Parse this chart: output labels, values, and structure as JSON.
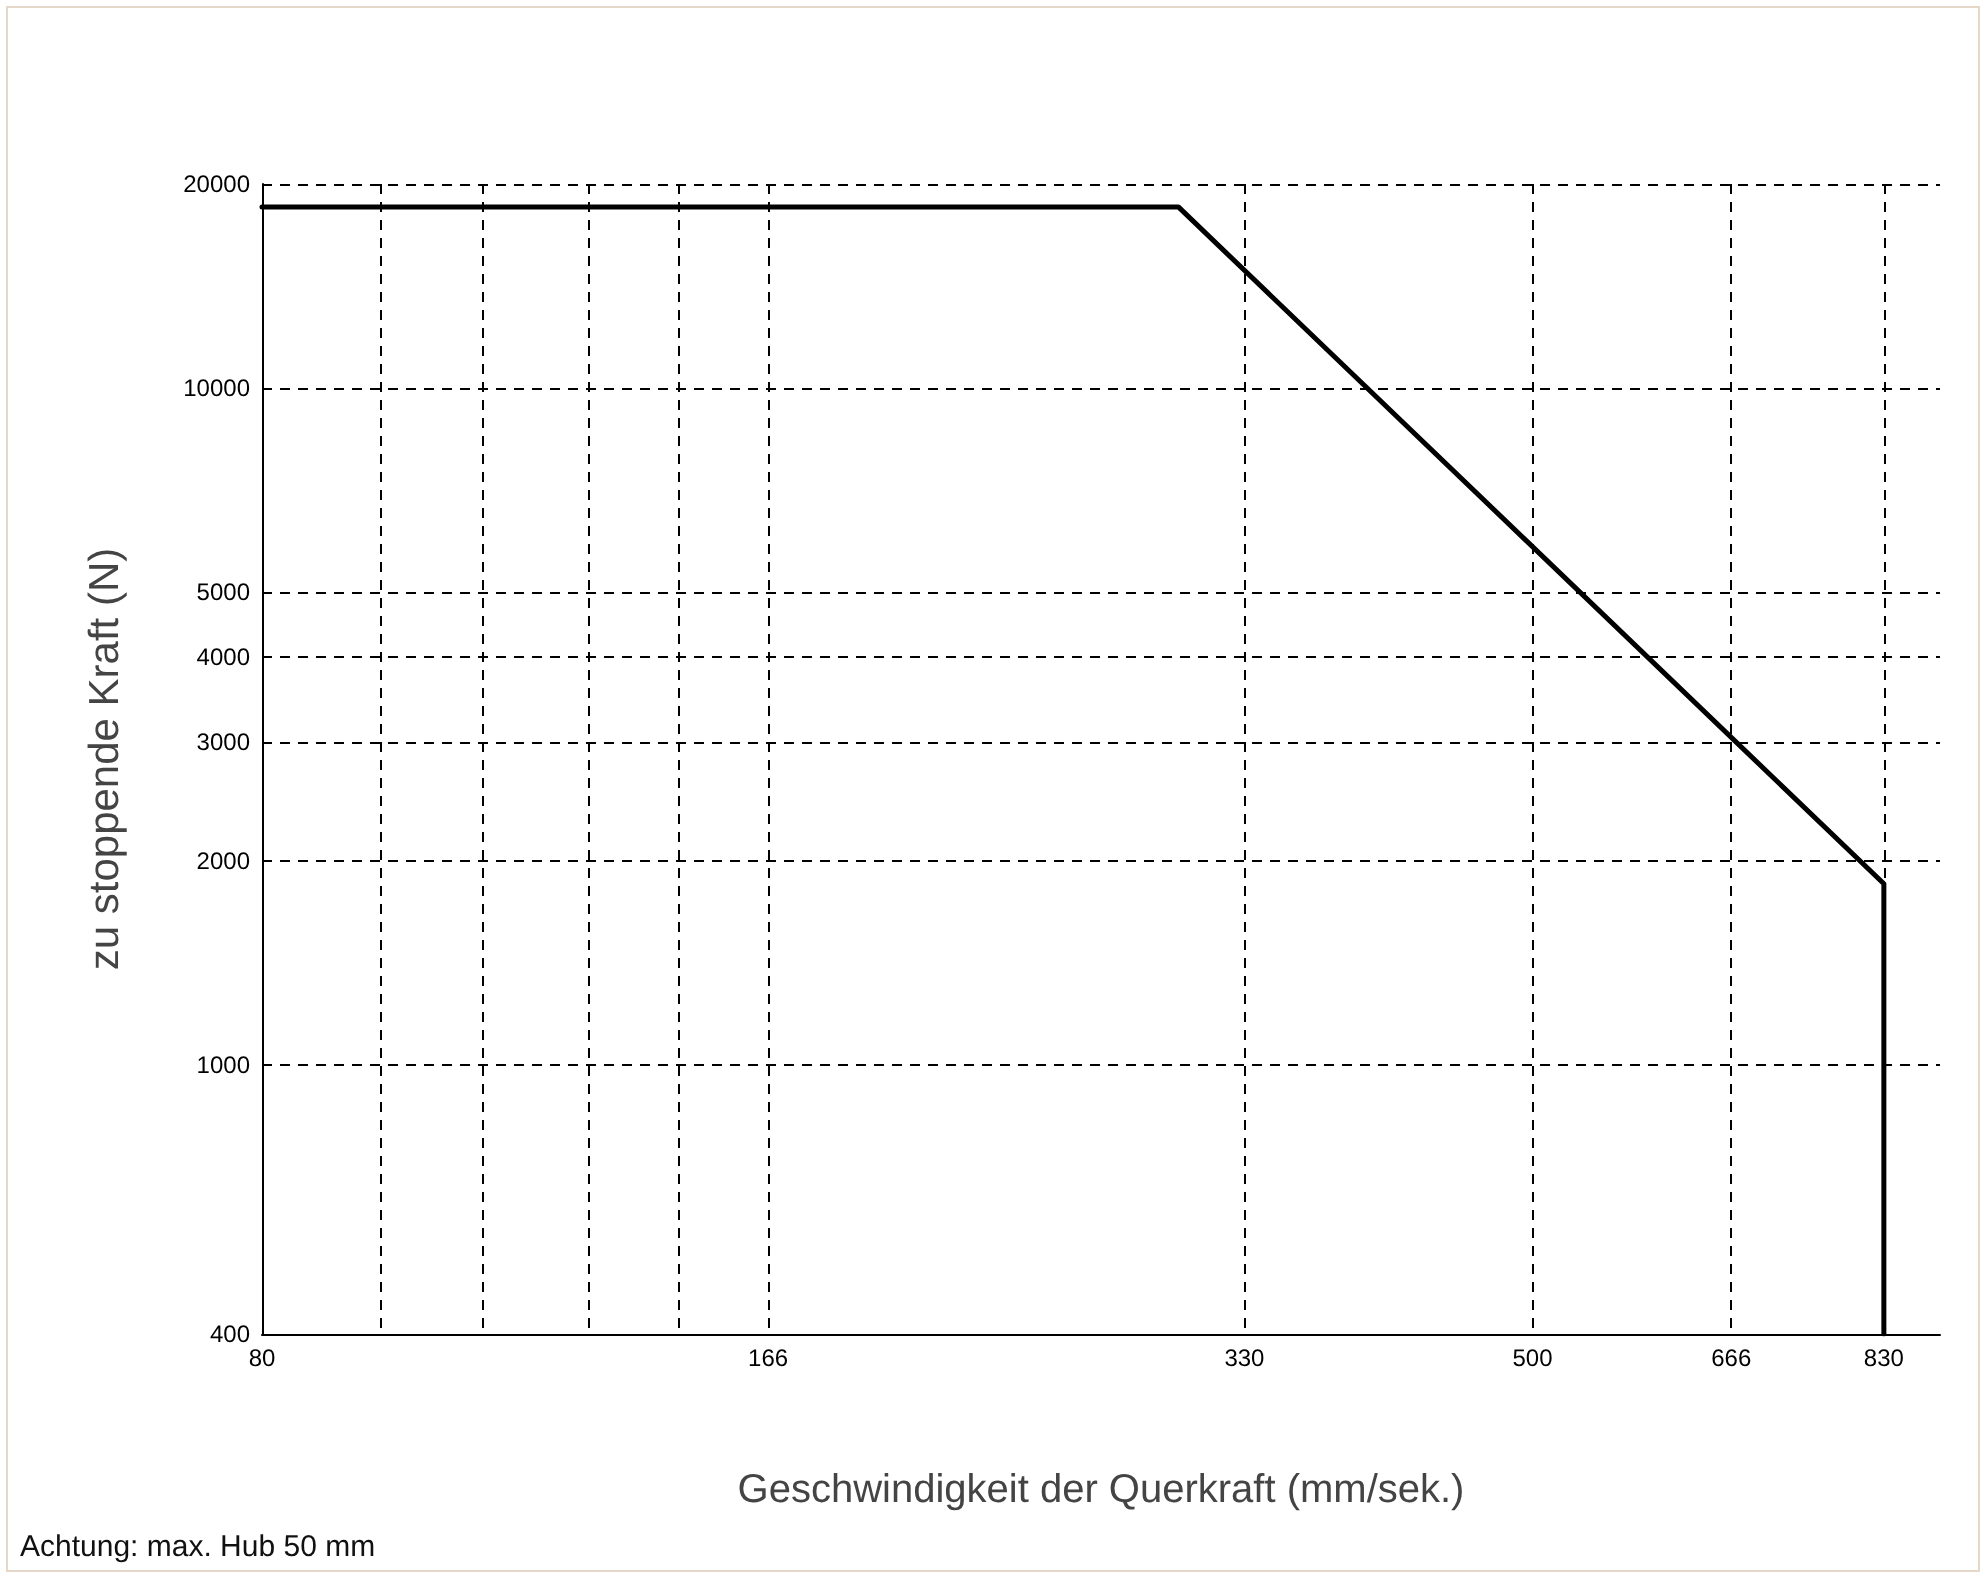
{
  "chart_data": {
    "type": "line",
    "xlabel": "Geschwindigkeit der Querkraft (mm/sek.)",
    "ylabel": "zu stoppende Kraft (N)",
    "annotations": [
      "Achtung: max. Hub 50 mm"
    ],
    "log": "xy",
    "xlim": [
      80,
      900
    ],
    "ylim": [
      400,
      20000
    ],
    "xticks": [
      80,
      {
        "value": 95,
        "label": null
      },
      {
        "value": 110,
        "label": null
      },
      {
        "value": 128,
        "label": null
      },
      {
        "value": 146,
        "label": null
      },
      166,
      330,
      500,
      666,
      830
    ],
    "yticks": [
      400,
      1000,
      2000,
      3000,
      4000,
      5000,
      10000,
      20000
    ],
    "grid": true,
    "marker": "none",
    "line_style": "solid",
    "series": [
      {
        "color": "#000000",
        "x": [
          80,
          300,
          830,
          830
        ],
        "values": [
          18500,
          18500,
          1850,
          400
        ]
      }
    ]
  }
}
